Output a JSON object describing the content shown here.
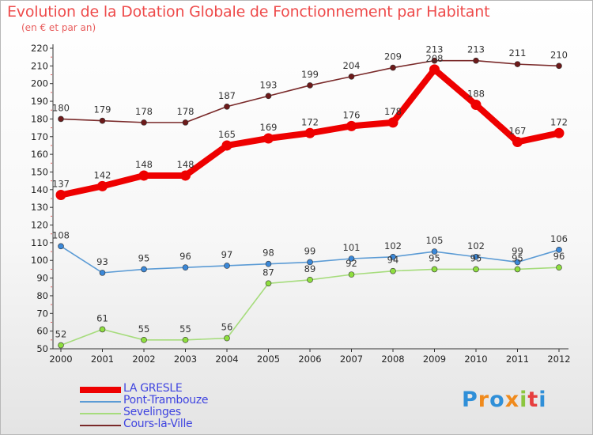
{
  "title": "Evolution de la Dotation Globale de Fonctionnement par Habitant",
  "subtitle": "(en € et par an)",
  "brand": {
    "text": "Proxiti",
    "letters": [
      "P",
      "r",
      "o",
      "x",
      "i",
      "t",
      "i"
    ],
    "letter_colors": [
      "#2f8fd8",
      "#f08a1c",
      "#2f8fd8",
      "#f08a1c",
      "#8cc63f",
      "#e63e3e",
      "#2f8fd8"
    ]
  },
  "chart_data": {
    "type": "line",
    "title": "Evolution de la Dotation Globale de Fonctionnement par Habitant",
    "subtitle": "(en € et par an)",
    "xlabel": "",
    "ylabel": "",
    "x": [
      2000,
      2001,
      2002,
      2003,
      2004,
      2005,
      2006,
      2007,
      2008,
      2009,
      2010,
      2011,
      2012
    ],
    "ylim": [
      50,
      220
    ],
    "yticks": [
      50,
      60,
      70,
      80,
      90,
      100,
      110,
      120,
      130,
      140,
      150,
      160,
      170,
      180,
      190,
      200,
      210,
      220
    ],
    "grid": false,
    "legend_position": "bottom-left",
    "series": [
      {
        "name": "LA GRESLE",
        "color": "#ee0000",
        "emphasis": true,
        "values": [
          137,
          142,
          148,
          148,
          165,
          169,
          172,
          176,
          178,
          208,
          188,
          167,
          172
        ]
      },
      {
        "name": "Pont-Trambouze",
        "color": "#5b9bd5",
        "marker": "#3b88d8",
        "values": [
          108,
          93,
          95,
          96,
          97,
          98,
          99,
          101,
          102,
          105,
          102,
          99,
          106
        ]
      },
      {
        "name": "Sevelinges",
        "color": "#a6dc7c",
        "marker": "#8ede3e",
        "values": [
          52,
          61,
          55,
          55,
          56,
          87,
          89,
          92,
          94,
          95,
          95,
          95,
          96
        ]
      },
      {
        "name": "Cours-la-Ville",
        "color": "#7a2a2a",
        "marker": "#6d1a1a",
        "values": [
          180,
          179,
          178,
          178,
          187,
          193,
          199,
          204,
          209,
          213,
          213,
          211,
          210
        ]
      }
    ]
  }
}
